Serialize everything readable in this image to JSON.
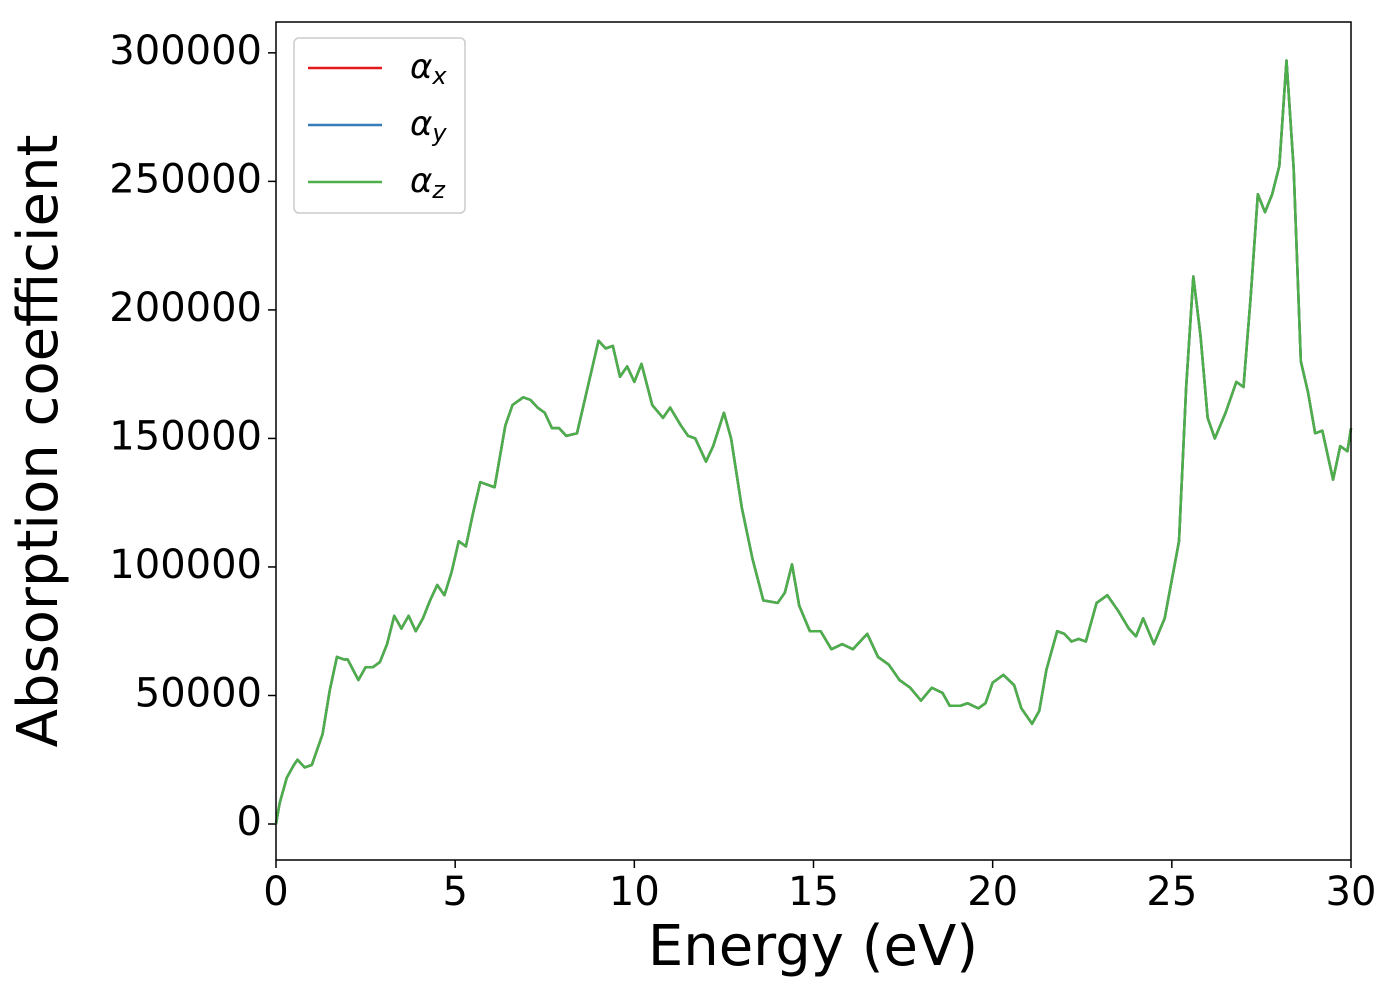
{
  "chart_data": {
    "type": "line",
    "xlabel": "Energy (eV)",
    "ylabel": "Absorption coefficient",
    "x": [
      0,
      0.1,
      0.3,
      0.5,
      0.6,
      0.8,
      1.0,
      1.3,
      1.5,
      1.7,
      1.9,
      2.0,
      2.3,
      2.5,
      2.7,
      2.9,
      3.1,
      3.3,
      3.5,
      3.7,
      3.9,
      4.1,
      4.3,
      4.5,
      4.7,
      4.9,
      5.1,
      5.3,
      5.5,
      5.7,
      5.9,
      6.1,
      6.4,
      6.6,
      6.9,
      7.1,
      7.3,
      7.5,
      7.7,
      7.9,
      8.1,
      8.4,
      8.7,
      9.0,
      9.2,
      9.4,
      9.6,
      9.8,
      10.0,
      10.2,
      10.5,
      10.8,
      11.0,
      11.3,
      11.5,
      11.7,
      12.0,
      12.2,
      12.5,
      12.7,
      13.0,
      13.3,
      13.6,
      14.0,
      14.2,
      14.4,
      14.6,
      14.9,
      15.2,
      15.5,
      15.8,
      16.1,
      16.5,
      16.8,
      17.1,
      17.4,
      17.7,
      18.0,
      18.3,
      18.6,
      18.8,
      19.1,
      19.3,
      19.6,
      19.8,
      20.0,
      20.3,
      20.6,
      20.8,
      21.1,
      21.3,
      21.5,
      21.8,
      22.0,
      22.2,
      22.4,
      22.6,
      22.9,
      23.2,
      23.5,
      23.8,
      24.0,
      24.2,
      24.5,
      24.8,
      25.2,
      25.4,
      25.6,
      25.8,
      26.0,
      26.2,
      26.5,
      26.8,
      27.0,
      27.2,
      27.4,
      27.6,
      27.8,
      28.0,
      28.2,
      28.4,
      28.6,
      28.8,
      29.0,
      29.2,
      29.5,
      29.7,
      29.9,
      30.0
    ],
    "series": [
      {
        "name": "αx",
        "color": "#e41a1c",
        "values": [
          0,
          8000,
          18000,
          23000,
          25000,
          22000,
          23000,
          35000,
          52000,
          65000,
          64000,
          64000,
          56000,
          61000,
          61000,
          63000,
          70000,
          81000,
          76000,
          81000,
          75000,
          80000,
          87000,
          93000,
          89000,
          98000,
          110000,
          108000,
          121000,
          133000,
          132000,
          131000,
          155000,
          163000,
          166000,
          165000,
          162000,
          160000,
          154000,
          154000,
          151000,
          152000,
          170000,
          188000,
          185000,
          186000,
          174000,
          178000,
          172000,
          179000,
          163000,
          158000,
          162000,
          155000,
          151000,
          150000,
          141000,
          147000,
          160000,
          150000,
          123000,
          103000,
          87000,
          86000,
          90000,
          101000,
          85000,
          75000,
          75000,
          68000,
          70000,
          68000,
          74000,
          65000,
          62000,
          56000,
          53000,
          48000,
          53000,
          51000,
          46000,
          46000,
          47000,
          45000,
          47000,
          55000,
          58000,
          54000,
          45000,
          39000,
          44000,
          60000,
          75000,
          74000,
          71000,
          72000,
          71000,
          86000,
          89000,
          83000,
          76000,
          73000,
          80000,
          70000,
          80000,
          110000,
          170000,
          213000,
          190000,
          158000,
          150000,
          160000,
          172000,
          170000,
          205000,
          245000,
          238000,
          245000,
          256000,
          297000,
          255000,
          180000,
          168000,
          152000,
          153000,
          134000,
          147000,
          145000,
          154000
        ]
      },
      {
        "name": "αy",
        "color": "#377eb8",
        "values": [
          0,
          8000,
          18000,
          23000,
          25000,
          22000,
          23000,
          35000,
          52000,
          65000,
          64000,
          64000,
          56000,
          61000,
          61000,
          63000,
          70000,
          81000,
          76000,
          81000,
          75000,
          80000,
          87000,
          93000,
          89000,
          98000,
          110000,
          108000,
          121000,
          133000,
          132000,
          131000,
          155000,
          163000,
          166000,
          165000,
          162000,
          160000,
          154000,
          154000,
          151000,
          152000,
          170000,
          188000,
          185000,
          186000,
          174000,
          178000,
          172000,
          179000,
          163000,
          158000,
          162000,
          155000,
          151000,
          150000,
          141000,
          147000,
          160000,
          150000,
          123000,
          103000,
          87000,
          86000,
          90000,
          101000,
          85000,
          75000,
          75000,
          68000,
          70000,
          68000,
          74000,
          65000,
          62000,
          56000,
          53000,
          48000,
          53000,
          51000,
          46000,
          46000,
          47000,
          45000,
          47000,
          55000,
          58000,
          54000,
          45000,
          39000,
          44000,
          60000,
          75000,
          74000,
          71000,
          72000,
          71000,
          86000,
          89000,
          83000,
          76000,
          73000,
          80000,
          70000,
          80000,
          110000,
          170000,
          213000,
          190000,
          158000,
          150000,
          160000,
          172000,
          170000,
          205000,
          245000,
          238000,
          245000,
          256000,
          297000,
          255000,
          180000,
          168000,
          152000,
          153000,
          134000,
          147000,
          145000,
          154000
        ]
      },
      {
        "name": "αz",
        "color": "#4daf4a",
        "values": [
          0,
          8000,
          18000,
          23000,
          25000,
          22000,
          23000,
          35000,
          52000,
          65000,
          64000,
          64000,
          56000,
          61000,
          61000,
          63000,
          70000,
          81000,
          76000,
          81000,
          75000,
          80000,
          87000,
          93000,
          89000,
          98000,
          110000,
          108000,
          121000,
          133000,
          132000,
          131000,
          155000,
          163000,
          166000,
          165000,
          162000,
          160000,
          154000,
          154000,
          151000,
          152000,
          170000,
          188000,
          185000,
          186000,
          174000,
          178000,
          172000,
          179000,
          163000,
          158000,
          162000,
          155000,
          151000,
          150000,
          141000,
          147000,
          160000,
          150000,
          123000,
          103000,
          87000,
          86000,
          90000,
          101000,
          85000,
          75000,
          75000,
          68000,
          70000,
          68000,
          74000,
          65000,
          62000,
          56000,
          53000,
          48000,
          53000,
          51000,
          46000,
          46000,
          47000,
          45000,
          47000,
          55000,
          58000,
          54000,
          45000,
          39000,
          44000,
          60000,
          75000,
          74000,
          71000,
          72000,
          71000,
          86000,
          89000,
          83000,
          76000,
          73000,
          80000,
          70000,
          80000,
          110000,
          170000,
          213000,
          190000,
          158000,
          150000,
          160000,
          172000,
          170000,
          205000,
          245000,
          238000,
          245000,
          256000,
          297000,
          255000,
          180000,
          168000,
          152000,
          153000,
          134000,
          147000,
          145000,
          154000
        ]
      }
    ],
    "xlim": [
      0,
      30
    ],
    "xticks": [
      0,
      5,
      10,
      15,
      20,
      25,
      30
    ],
    "ylim": [
      -14000,
      312000
    ],
    "yticks": [
      0,
      50000,
      100000,
      150000,
      200000,
      250000,
      300000
    ],
    "legend": "upper left",
    "grid": false
  }
}
